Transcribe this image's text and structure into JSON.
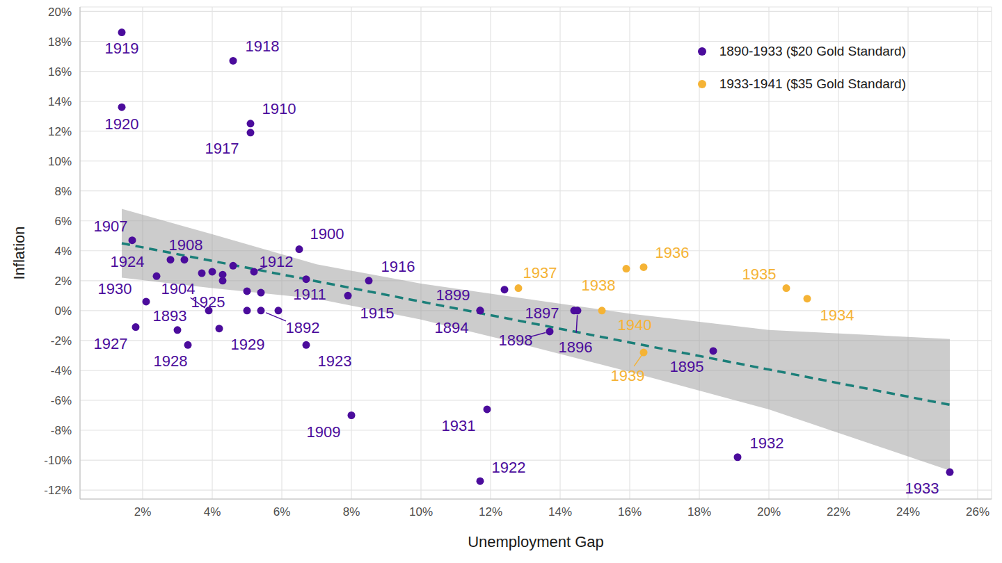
{
  "chart_data": {
    "type": "scatter",
    "x_label": "Unemployment Gap",
    "y_label": "Inflation",
    "xlim": [
      0.2,
      26.4
    ],
    "ylim": [
      -12.6,
      20.3
    ],
    "xticks": [
      {
        "value": 2,
        "label": "2%"
      },
      {
        "value": 4,
        "label": "4%"
      },
      {
        "value": 6,
        "label": "6%"
      },
      {
        "value": 8,
        "label": "8%"
      },
      {
        "value": 10,
        "label": "10%"
      },
      {
        "value": 12,
        "label": "12%"
      },
      {
        "value": 14,
        "label": "14%"
      },
      {
        "value": 16,
        "label": "16%"
      },
      {
        "value": 18,
        "label": "18%"
      },
      {
        "value": 20,
        "label": "20%"
      },
      {
        "value": 22,
        "label": "22%"
      },
      {
        "value": 24,
        "label": "24%"
      },
      {
        "value": 26,
        "label": "26%"
      }
    ],
    "yticks": [
      {
        "value": -12,
        "label": "-12%"
      },
      {
        "value": -10,
        "label": "-10%"
      },
      {
        "value": -8,
        "label": "-8%"
      },
      {
        "value": -6,
        "label": "-6%"
      },
      {
        "value": -4,
        "label": "-4%"
      },
      {
        "value": -2,
        "label": "-2%"
      },
      {
        "value": 0,
        "label": "0%"
      },
      {
        "value": 2,
        "label": "2%"
      },
      {
        "value": 4,
        "label": "4%"
      },
      {
        "value": 6,
        "label": "6%"
      },
      {
        "value": 8,
        "label": "8%"
      },
      {
        "value": 10,
        "label": "10%"
      },
      {
        "value": 12,
        "label": "12%"
      },
      {
        "value": 14,
        "label": "14%"
      },
      {
        "value": 16,
        "label": "16%"
      },
      {
        "value": 18,
        "label": "18%"
      },
      {
        "value": 20,
        "label": "20%"
      }
    ],
    "grid": true,
    "legend": "upper right",
    "series": [
      {
        "name": "1890-1933 ($20 Gold Standard)",
        "color": "#4b0c9c",
        "marker": "circle",
        "x": [
          1.4,
          1.4,
          4.6,
          5.1,
          5.1,
          1.7,
          2.8,
          3.2,
          2.4,
          2.1,
          1.8,
          3.0,
          3.3,
          3.9,
          4.2,
          5.0,
          5.4,
          5.9,
          6.7,
          3.7,
          4.0,
          4.3,
          4.3,
          4.6,
          5.0,
          5.2,
          5.4,
          6.7,
          7.9,
          8.5,
          6.5,
          8.0,
          11.7,
          11.7,
          12.4,
          11.9,
          11.7,
          13.7,
          14.4,
          14.5,
          18.4,
          19.1,
          25.2
        ],
        "values": [
          18.6,
          13.6,
          16.7,
          12.5,
          11.9,
          4.7,
          3.4,
          3.4,
          2.3,
          0.6,
          -1.1,
          -1.3,
          -2.3,
          0.0,
          -1.2,
          0.0,
          0.0,
          0.0,
          -2.3,
          2.5,
          2.6,
          2.4,
          2.0,
          3.0,
          1.3,
          2.6,
          1.2,
          2.1,
          1.0,
          2.0,
          4.1,
          -7.0,
          0.0,
          0.0,
          1.4,
          -6.6,
          -11.4,
          -1.4,
          0.0,
          0.0,
          -2.7,
          -9.8,
          -10.8
        ],
        "point_labels": [
          "1919",
          "1920",
          "1918",
          "1910",
          "1917",
          "1907",
          "1908",
          null,
          "1924",
          "1930",
          "1927",
          "1893",
          "1928",
          "1904",
          "1929",
          "1925",
          "1892",
          null,
          "1923",
          null,
          null,
          null,
          null,
          null,
          null,
          "1912",
          null,
          "1911",
          "1915",
          "1916",
          "1900",
          "1909",
          "1899",
          "1894",
          null,
          "1931",
          "1922",
          "1898",
          "1897",
          "1896",
          "1895",
          "1932",
          "1933"
        ]
      },
      {
        "name": "1933-1941 ($35 Gold Standard)",
        "color": "#f5b335",
        "marker": "circle",
        "x": [
          12.8,
          15.9,
          16.4,
          15.2,
          16.4,
          20.5,
          21.1
        ],
        "values": [
          1.5,
          2.8,
          2.9,
          0.0,
          -2.8,
          1.5,
          0.8
        ],
        "point_labels": [
          "1937",
          "1938",
          "1936",
          "1940",
          "1939",
          "1935",
          "1934"
        ]
      }
    ],
    "trend": {
      "x": [
        1.4,
        4,
        7,
        10,
        13,
        16,
        20,
        25.2
      ],
      "values": [
        4.5,
        3.32,
        1.96,
        0.6,
        -0.76,
        -2.13,
        -3.94,
        -6.3
      ],
      "lower": [
        2.2,
        1.5,
        0.8,
        -0.6,
        -2.3,
        -4.1,
        -6.6,
        -10.7
      ],
      "upper": [
        6.8,
        5.1,
        3.1,
        1.8,
        0.8,
        -0.2,
        -1.3,
        -1.9
      ],
      "color": "#1b7f79",
      "band_color": "#999999",
      "line_style": "dashed"
    }
  }
}
